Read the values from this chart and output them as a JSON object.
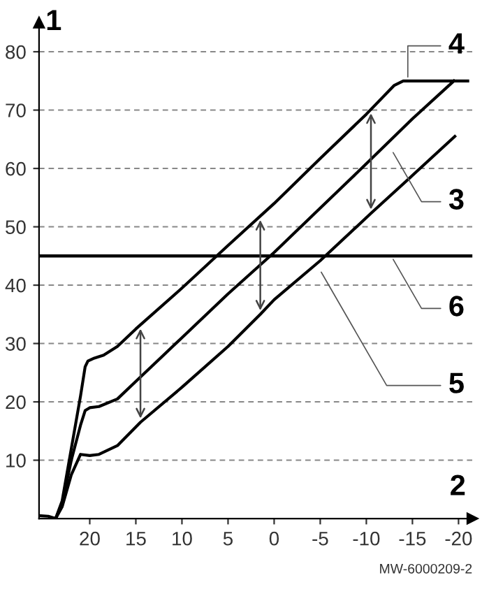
{
  "chart_data": {
    "type": "line",
    "xlabel": "2",
    "ylabel": "1",
    "series": [
      {
        "color": "#000000",
        "x": [
          25.5,
          24.5,
          23.7,
          23,
          22,
          21,
          20.5,
          20.2,
          19.5,
          18.5,
          17,
          15,
          10,
          5,
          0,
          -5,
          -10,
          -13,
          -14,
          -21
        ],
        "values": [
          0.5,
          0.4,
          0,
          3,
          12,
          21,
          26,
          27,
          27.5,
          28,
          29.5,
          32.5,
          39.5,
          46.8,
          54,
          61.7,
          69.3,
          74.2,
          75,
          75
        ]
      },
      {
        "color": "#000000",
        "x": [
          23.7,
          23,
          22,
          21,
          20.5,
          20,
          19,
          17,
          15,
          10,
          5,
          0,
          -5,
          -10,
          -15,
          -19.5
        ],
        "values": [
          0,
          2.5,
          10,
          16,
          18.5,
          19,
          19.2,
          20.5,
          23.5,
          31,
          38.5,
          45.6,
          53.2,
          60.8,
          68.5,
          75
        ]
      },
      {
        "color": "#000000",
        "x": [
          23.7,
          23,
          22,
          21,
          20,
          19,
          17,
          14.5,
          10,
          5,
          1.5,
          0,
          -5,
          -10.5,
          -15,
          -19.6
        ],
        "values": [
          0,
          2,
          7.5,
          11,
          10.8,
          11,
          12.5,
          16.5,
          22.5,
          29.5,
          35,
          37.5,
          44.2,
          52.3,
          58.8,
          65.5
        ]
      }
    ],
    "ref_lines": [
      {
        "axis": "y",
        "value": 45,
        "color": "#000000"
      }
    ],
    "annotations": [
      {
        "text": "4",
        "x": -14.5,
        "y": 75
      },
      {
        "text": "3",
        "x": -12.7,
        "y": 63.3
      },
      {
        "text": "5",
        "x": -4.9,
        "y": 42.8
      },
      {
        "text": "6",
        "x": -12.7,
        "y": 45
      },
      "MW-6000209-2"
    ],
    "xlim": [
      25.5,
      -21.5
    ],
    "ylim": [
      0,
      85
    ],
    "xticks": [
      20,
      15,
      10,
      5,
      0,
      -5,
      -10,
      -15,
      -20
    ],
    "yticks": [
      10,
      20,
      30,
      40,
      50,
      60,
      70,
      80
    ],
    "grid": "y",
    "marker": "none",
    "line_style": "solid"
  }
}
